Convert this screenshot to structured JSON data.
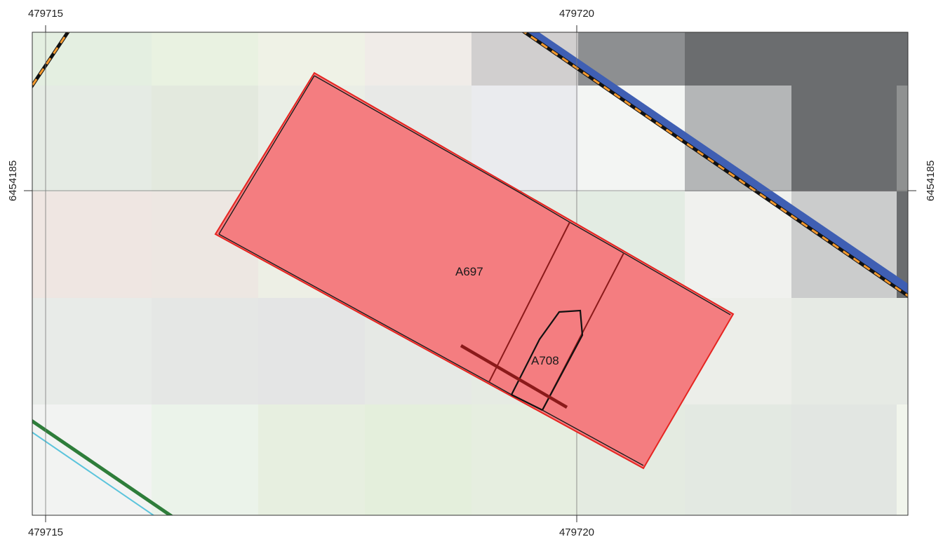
{
  "grid": {
    "x_labels": {
      "left": "479715",
      "right": "479720"
    },
    "y_labels": {
      "middle": "6454185"
    }
  },
  "parcels": [
    {
      "id": "A697",
      "color": "#f47d80",
      "outline": "#e52521"
    },
    {
      "id": "A708",
      "outline": "#8b1a1a"
    }
  ],
  "colors": {
    "road_blue": "#3f5fb3",
    "railway_dash_orange": "#f59a2f",
    "railway_dash_black": "#111111",
    "path_green": "#2e7d3a",
    "stream_cyan": "#5bc4dc",
    "cut_line": "#8b1a1a"
  }
}
